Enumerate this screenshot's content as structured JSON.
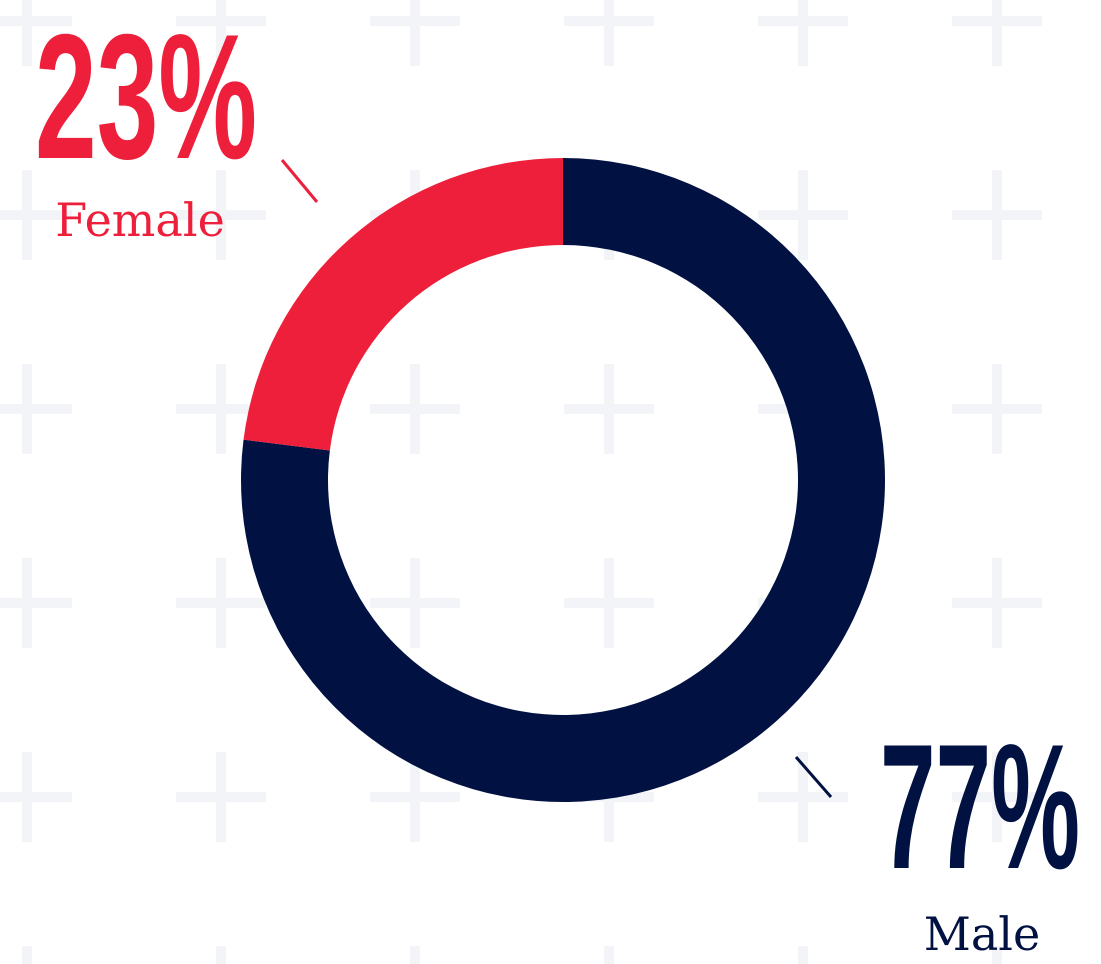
{
  "chart_data": {
    "type": "donut",
    "categories": [
      "Male",
      "Female"
    ],
    "values": [
      77,
      23
    ],
    "value_labels": [
      "77%",
      "23%"
    ],
    "colors": [
      "#011242",
      "#ee1f3b"
    ]
  }
}
